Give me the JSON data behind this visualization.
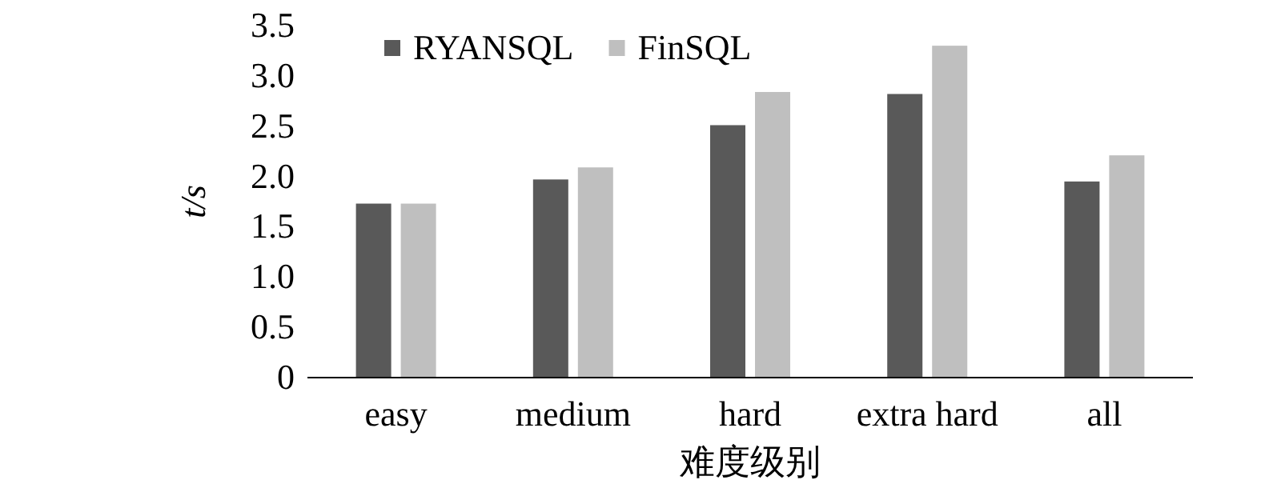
{
  "chart_data": {
    "type": "bar",
    "xlabel": "难度级别",
    "ylabel": "t/s",
    "categories": [
      "easy",
      "medium",
      "hard",
      "extra hard",
      "all"
    ],
    "series": [
      {
        "name": "RYANSQL",
        "color": "#595959",
        "values": [
          1.73,
          1.97,
          2.51,
          2.82,
          1.95
        ]
      },
      {
        "name": "FinSQL",
        "color": "#bfbfbf",
        "values": [
          1.73,
          2.09,
          2.84,
          3.3,
          2.21
        ]
      }
    ],
    "ylim": [
      0,
      3.5
    ],
    "yticks": [
      0,
      {
        "value": 0.5,
        "label": "0.5"
      },
      {
        "value": 1,
        "label": "1.0"
      },
      {
        "value": 1.5,
        "label": "1.5"
      },
      {
        "value": 2,
        "label": "2.0"
      },
      {
        "value": 2.5,
        "label": "2.5"
      },
      {
        "value": 3,
        "label": "3.0"
      },
      {
        "value": 3.5,
        "label": "3.5"
      }
    ],
    "grid": false,
    "legend": "top left"
  }
}
